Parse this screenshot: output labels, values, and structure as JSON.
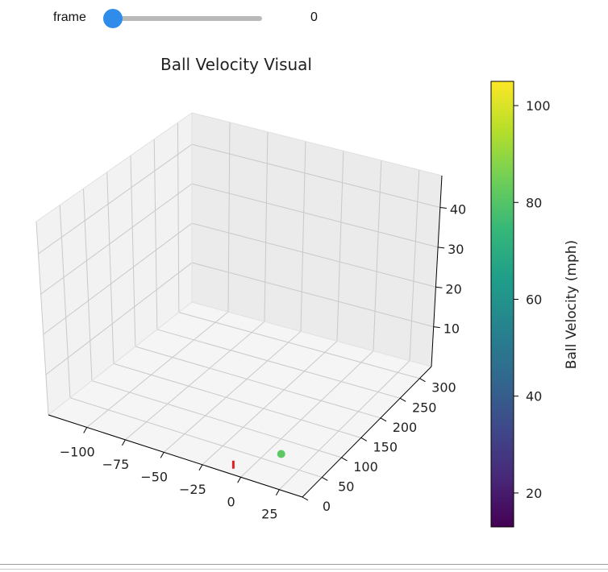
{
  "slider": {
    "label": "frame",
    "value": "0",
    "position": 0
  },
  "chart_data": {
    "type": "scatter",
    "projection": "3d",
    "title": "Ball Velocity Visual",
    "xlabel": "",
    "ylabel": "",
    "zlabel": "",
    "x_ticks": [
      "−100",
      "−75",
      "−50",
      "−25",
      "0",
      "25"
    ],
    "y_ticks": [
      "0",
      "50",
      "100",
      "150",
      "200",
      "250",
      "300"
    ],
    "z_ticks": [
      "10",
      "20",
      "30",
      "40"
    ],
    "xlim": [
      -125,
      40
    ],
    "ylim": [
      0,
      330
    ],
    "zlim": [
      0,
      48
    ],
    "grid": true,
    "points": [
      {
        "x": 12,
        "y": 55,
        "z": 2,
        "velocity": 83,
        "color": "#5ec962"
      }
    ],
    "markers": [
      {
        "x": -8,
        "y": 12,
        "z": 1,
        "color": "#e02020"
      }
    ],
    "colorbar": {
      "label": "Ball Velocity (mph)",
      "ticks": [
        "20",
        "40",
        "60",
        "80",
        "100"
      ],
      "range": [
        13,
        105
      ],
      "colormap": "viridis"
    }
  }
}
